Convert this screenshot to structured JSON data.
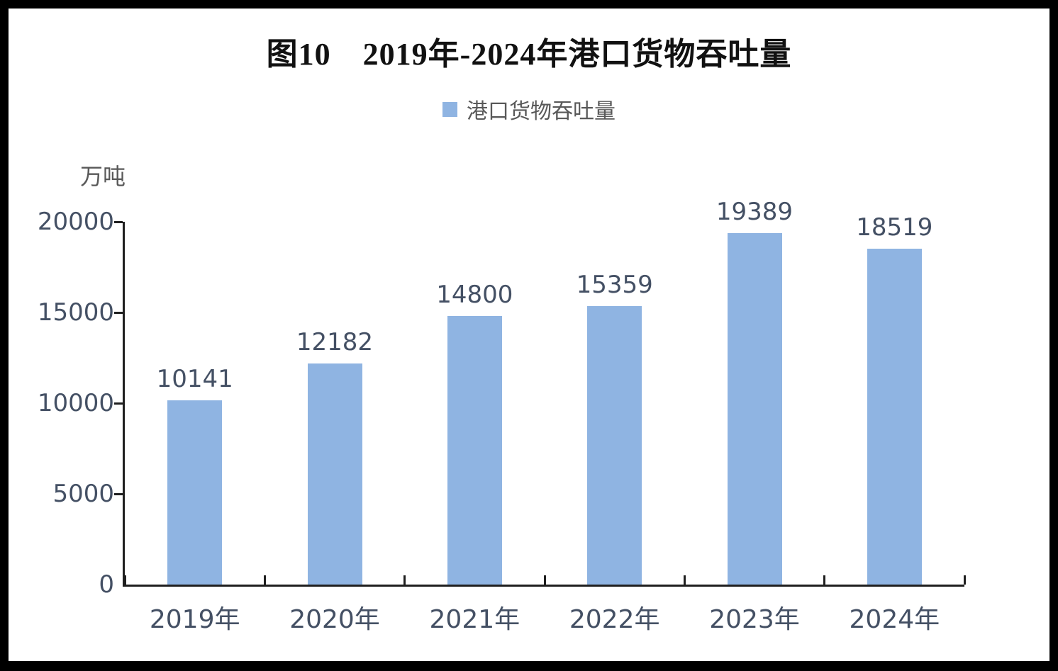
{
  "chart_data": {
    "type": "bar",
    "title": "图10　2019年-2024年港口货物吞吐量",
    "unit_label": "万吨",
    "legend": {
      "label": "港口货物吞吐量",
      "position": "top-center"
    },
    "categories": [
      "2019年",
      "2020年",
      "2021年",
      "2022年",
      "2023年",
      "2024年"
    ],
    "values": [
      10141,
      12182,
      14800,
      15359,
      19389,
      18519
    ],
    "y_ticks": [
      0,
      5000,
      10000,
      15000,
      20000
    ],
    "ylim": [
      0,
      20000
    ],
    "xlabel": "",
    "ylabel": "万吨",
    "grid": false,
    "data_labels": true
  },
  "colors": {
    "bar_fill": "#8FB4E2",
    "legend_swatch": "#8FB4E2",
    "axis_line": "#1f1f1f",
    "title_text": "#111111",
    "tick_label_text": "#445064",
    "data_label_text": "#445064",
    "category_label_text": "#445064",
    "legend_text": "#595959",
    "unit_text": "#595959",
    "background": "#ffffff",
    "outer_frame": "#000000"
  }
}
